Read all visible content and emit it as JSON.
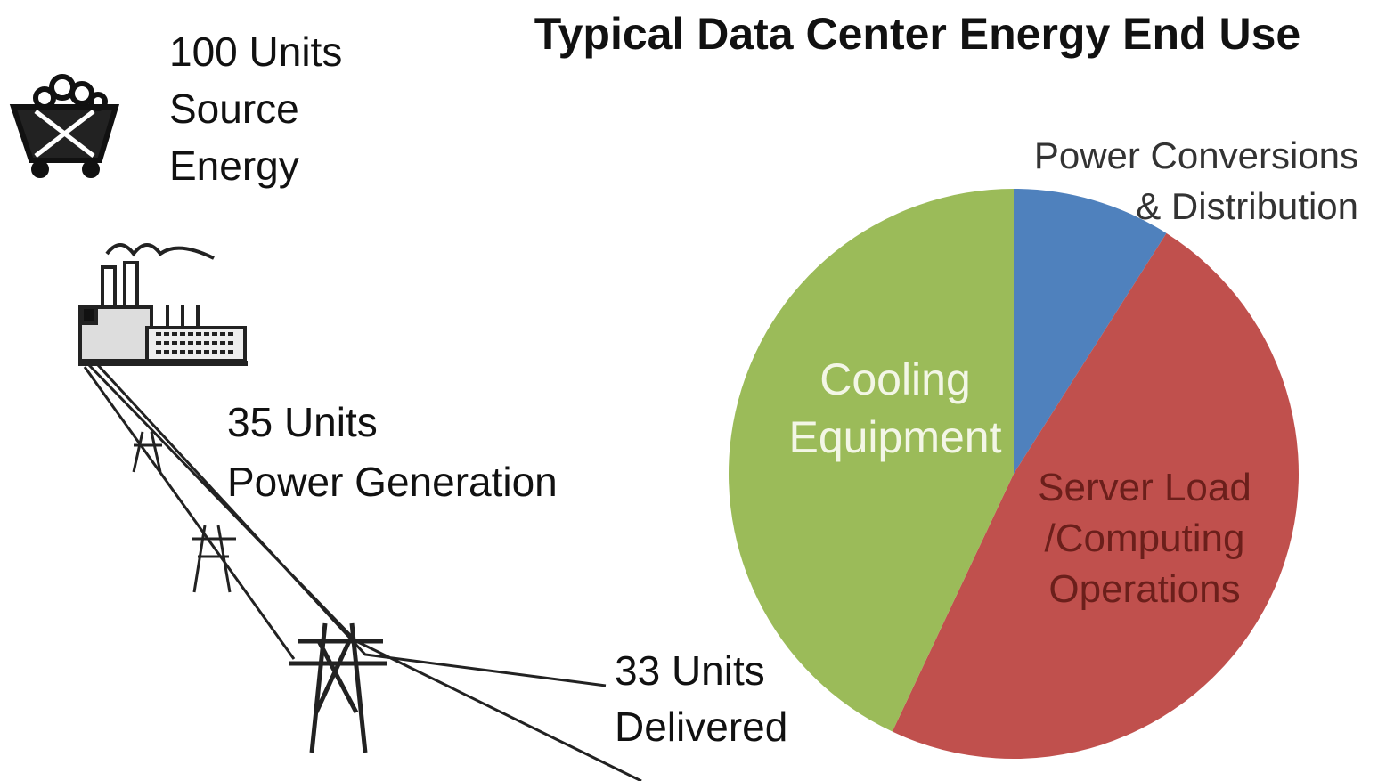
{
  "chart_data": {
    "type": "pie",
    "title": "Typical Data Center Energy End Use",
    "categories": [
      "Power Conversions\n& Distribution",
      "Server Load\n/Computing\nOperations",
      "Cooling\nEquipment"
    ],
    "values": [
      9,
      48,
      43
    ],
    "colors": [
      "#4f81bd",
      "#c0504d",
      "#9bbb59"
    ]
  },
  "illustration": {
    "steps": [
      "100 Units\nSource\nEnergy",
      "35 Units\nPower Generation",
      "33 Units\nDelivered"
    ]
  }
}
